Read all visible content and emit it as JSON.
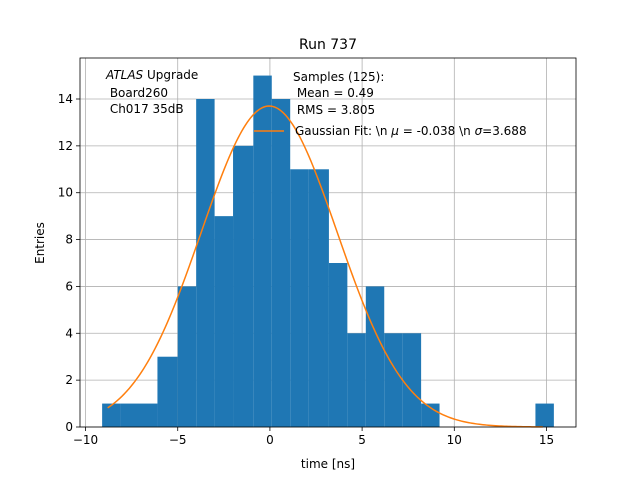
{
  "chart_data": {
    "type": "bar",
    "title": "Run 737",
    "xlabel": "time [ns]",
    "ylabel": "Entries",
    "xlim": [
      -10.3,
      16.6
    ],
    "ylim": [
      0,
      15.75
    ],
    "grid": true,
    "x_ticks": [
      -10,
      -5,
      0,
      5,
      10,
      15
    ],
    "y_ticks": [
      0,
      2,
      4,
      6,
      8,
      10,
      12,
      14
    ],
    "histogram": {
      "color": "#1f77b4",
      "bins": [
        {
          "x0": -9.1,
          "x1": -8.1,
          "count": 1
        },
        {
          "x0": -8.1,
          "x1": -7.1,
          "count": 1
        },
        {
          "x0": -7.1,
          "x1": -6.1,
          "count": 1
        },
        {
          "x0": -6.1,
          "x1": -5.0,
          "count": 3
        },
        {
          "x0": -5.0,
          "x1": -4.0,
          "count": 6
        },
        {
          "x0": -4.0,
          "x1": -3.0,
          "count": 14
        },
        {
          "x0": -3.0,
          "x1": -2.0,
          "count": 9
        },
        {
          "x0": -2.0,
          "x1": -0.9,
          "count": 12
        },
        {
          "x0": -0.9,
          "x1": 0.1,
          "count": 15
        },
        {
          "x0": 0.1,
          "x1": 1.1,
          "count": 14
        },
        {
          "x0": 1.1,
          "x1": 2.1,
          "count": 11
        },
        {
          "x0": 2.1,
          "x1": 3.2,
          "count": 11
        },
        {
          "x0": 3.2,
          "x1": 4.2,
          "count": 7
        },
        {
          "x0": 4.2,
          "x1": 5.2,
          "count": 4
        },
        {
          "x0": 5.2,
          "x1": 6.2,
          "count": 6
        },
        {
          "x0": 6.2,
          "x1": 7.2,
          "count": 4
        },
        {
          "x0": 7.2,
          "x1": 8.2,
          "count": 4
        },
        {
          "x0": 8.2,
          "x1": 9.2,
          "count": 1
        },
        {
          "x0": 14.4,
          "x1": 15.4,
          "count": 1
        }
      ]
    },
    "fit": {
      "name": "Gaussian Fit: \\n $\\mu$ = -0.038 \\n $\\sigma$=3.688",
      "color": "#ff7f0e",
      "mu": -0.038,
      "sigma": 3.688,
      "amplitude": 13.7,
      "x_range": [
        -8.8,
        14.8
      ]
    },
    "annotations": {
      "label_lines": [
        "ATLAS Upgrade",
        " Board260",
        " Ch017 35dB"
      ],
      "stats_lines": [
        "Samples (125):",
        " Mean = 0.49",
        " RMS = 3.805"
      ]
    },
    "legend_position": "upper-right"
  }
}
